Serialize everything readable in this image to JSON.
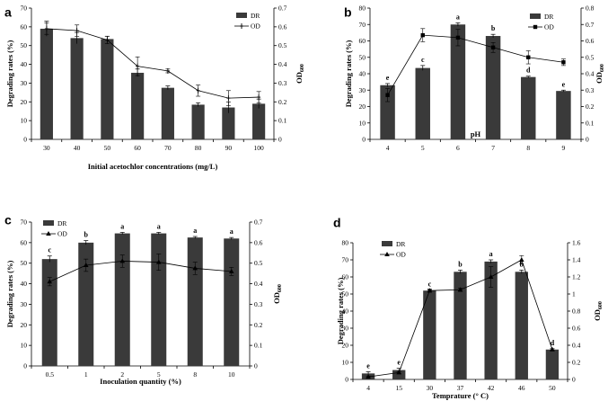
{
  "chart_data": [
    {
      "type": "bar",
      "panel": "a",
      "xlabel": "Initial acetochlor concentrations (mg/L)",
      "ylabel": "Degrading rates (%)",
      "y2label": "OD",
      "y2sub": "600",
      "categories": [
        "30",
        "40",
        "50",
        "60",
        "70",
        "80",
        "90",
        "100"
      ],
      "ylim": [
        0,
        70
      ],
      "yticks": [
        "0",
        "10",
        "20",
        "30",
        "40",
        "50",
        "60",
        "70"
      ],
      "y2lim": [
        0,
        0.7
      ],
      "y2ticks": [
        "0",
        "0.1",
        "0.2",
        "0.3",
        "0.4",
        "0.5",
        "0.6",
        "0.7"
      ],
      "legend": [
        "DR",
        "OD"
      ],
      "legend_position": "top-right",
      "series": [
        {
          "name": "DR",
          "kind": "bar",
          "axis": "left",
          "values": [
            59,
            54,
            53.5,
            35.5,
            27.5,
            18.5,
            17,
            19
          ],
          "errors": [
            4,
            3,
            1.5,
            2,
            1,
            1,
            3,
            2.5
          ]
        },
        {
          "name": "OD",
          "kind": "line",
          "marker": "cross",
          "axis": "right",
          "values": [
            0.59,
            0.58,
            0.53,
            0.39,
            0.365,
            0.26,
            0.22,
            0.225
          ],
          "errors": [
            0.03,
            0.03,
            0.02,
            0.05,
            0.01,
            0.03,
            0.04,
            0.03
          ]
        }
      ],
      "sig_labels": []
    },
    {
      "type": "bar",
      "panel": "b",
      "xlabel": "pH",
      "ylabel": "Degrading rates (%)",
      "y2label": "OD",
      "y2sub": "600",
      "categories": [
        "4",
        "5",
        "6",
        "7",
        "8",
        "9"
      ],
      "ylim": [
        0,
        80
      ],
      "yticks": [
        "0",
        "10",
        "20",
        "30",
        "40",
        "50",
        "60",
        "70",
        "80"
      ],
      "y2lim": [
        0,
        0.8
      ],
      "y2ticks": [
        "0",
        "0.1",
        "0.2",
        "0.3",
        "0.4",
        "0.5",
        "0.6",
        "0.7",
        "0.8"
      ],
      "legend": [
        "DR",
        "OD"
      ],
      "legend_position": "top-right",
      "series": [
        {
          "name": "DR",
          "kind": "bar",
          "axis": "left",
          "values": [
            33,
            43.5,
            70,
            63,
            38,
            29.5
          ],
          "errors": [
            1,
            1.5,
            1,
            1,
            0.5,
            0.5
          ]
        },
        {
          "name": "OD",
          "kind": "line",
          "marker": "square",
          "axis": "right",
          "values": [
            0.27,
            0.635,
            0.62,
            0.56,
            0.5,
            0.47
          ],
          "errors": [
            0.04,
            0.04,
            0.05,
            0.03,
            0.04,
            0.02
          ]
        }
      ],
      "sig_labels": [
        "e",
        "c",
        "a",
        "b",
        "d",
        "e"
      ]
    },
    {
      "type": "bar",
      "panel": "c",
      "xlabel": "Inoculation quantity (%)",
      "ylabel": "Degrading rates (%)",
      "y2label": "OD",
      "y2sub": "600",
      "categories": [
        "0.5",
        "1",
        "2",
        "5",
        "8",
        "10"
      ],
      "ylim": [
        0,
        70
      ],
      "yticks": [
        "0",
        "10",
        "20",
        "30",
        "40",
        "50",
        "60",
        "70"
      ],
      "y2lim": [
        0,
        0.7
      ],
      "y2ticks": [
        "0",
        "0.1",
        "0.2",
        "0.3",
        "0.4",
        "0.5",
        "0.6",
        "0.7"
      ],
      "legend": [
        "DR",
        "OD"
      ],
      "legend_position": "top-left",
      "series": [
        {
          "name": "DR",
          "kind": "bar",
          "axis": "left",
          "values": [
            52,
            60,
            64.5,
            64.5,
            62.5,
            62
          ],
          "errors": [
            1.5,
            1,
            0.5,
            0.5,
            0.5,
            0.5
          ]
        },
        {
          "name": "OD",
          "kind": "line",
          "marker": "triangle",
          "axis": "right",
          "values": [
            0.41,
            0.49,
            0.51,
            0.505,
            0.475,
            0.46
          ],
          "errors": [
            0.02,
            0.03,
            0.03,
            0.04,
            0.03,
            0.02
          ]
        }
      ],
      "sig_labels": [
        "c",
        "b",
        "a",
        "a",
        "a",
        "a"
      ]
    },
    {
      "type": "bar",
      "panel": "d",
      "xlabel": "Temprature (° C)",
      "ylabel": "Degrading rates (%)",
      "y2label": "OD",
      "y2sub": "600",
      "categories": [
        "4",
        "15",
        "30",
        "37",
        "42",
        "46",
        "50"
      ],
      "ylim": [
        0,
        80
      ],
      "yticks": [
        "0",
        "10",
        "20",
        "30",
        "40",
        "50",
        "60",
        "70",
        "80"
      ],
      "y2lim": [
        0,
        1.6
      ],
      "y2ticks": [
        "0",
        "0.2",
        "0.4",
        "0.6",
        "0.8",
        "1",
        "1.2",
        "1.4",
        "1.6"
      ],
      "legend": [
        "DR",
        "OD"
      ],
      "legend_position": "top-left",
      "series": [
        {
          "name": "DR",
          "kind": "bar",
          "axis": "left",
          "values": [
            3.5,
            5.5,
            52,
            63,
            69,
            63,
            17.5
          ],
          "errors": [
            1,
            1,
            0.5,
            1,
            1,
            1,
            0.5
          ]
        },
        {
          "name": "OD",
          "kind": "line",
          "marker": "triangle",
          "axis": "right",
          "values": [
            0.03,
            0.08,
            1.04,
            1.05,
            1.2,
            1.4,
            0.35
          ],
          "errors": [
            0.01,
            0.01,
            0.02,
            0.02,
            0.12,
            0.05,
            0.01
          ]
        }
      ],
      "sig_labels": [
        "e",
        "e",
        "c",
        "b",
        "a",
        "b",
        "d"
      ]
    }
  ]
}
